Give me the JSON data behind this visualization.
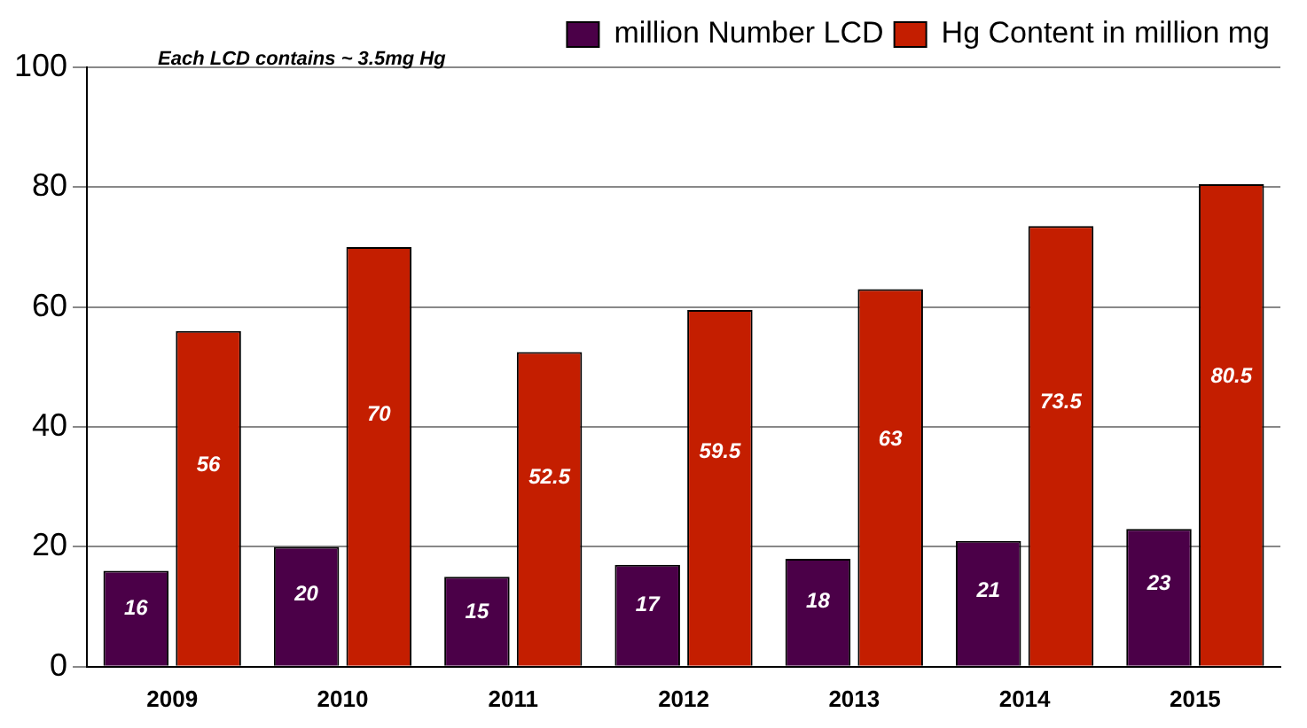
{
  "chart_data": {
    "type": "bar",
    "categories": [
      "2009",
      "2010",
      "2011",
      "2012",
      "2013",
      "2014",
      "2015"
    ],
    "series": [
      {
        "name": "million Number LCD",
        "color": "#4b0048",
        "values": [
          16,
          20,
          15,
          17,
          18,
          21,
          23
        ]
      },
      {
        "name": "Hg Content in million mg",
        "color": "#c41e00",
        "values": [
          56,
          70,
          52.5,
          59.5,
          63,
          73.5,
          80.5
        ]
      }
    ],
    "ylim": [
      0,
      100
    ],
    "yticks": [
      0,
      20,
      40,
      60,
      80,
      100
    ],
    "grid": "y",
    "legend": "top right",
    "data_labels": true,
    "annotations": [
      "Each LCD contains ~ 3.5mg Hg"
    ]
  }
}
